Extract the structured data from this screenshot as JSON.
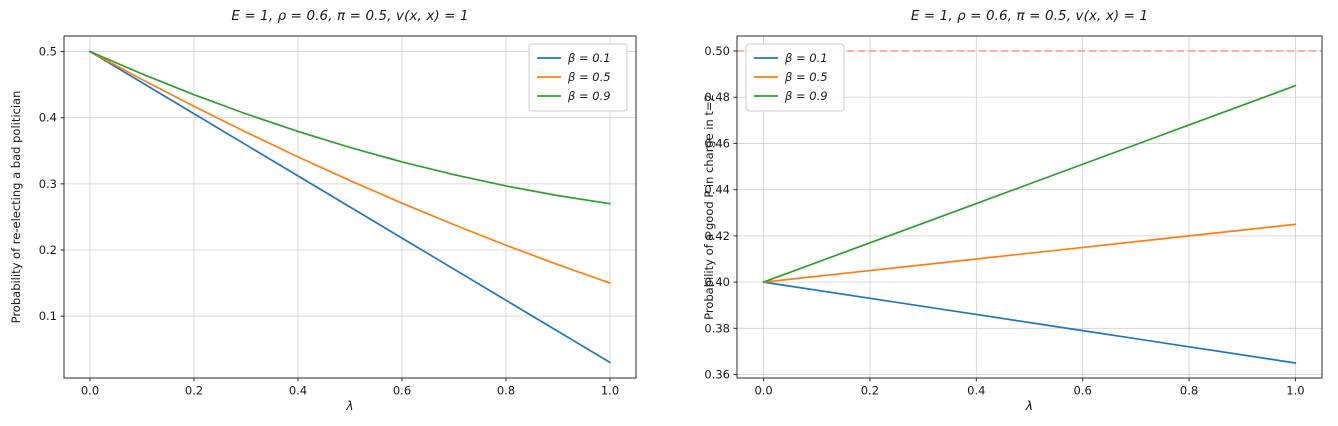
{
  "chart_data": [
    {
      "type": "line",
      "title": "E = 1, ρ = 0.6, π = 0.5, v(x, x) = 1",
      "xlabel": "λ",
      "ylabel": "Probability of re-electing a bad politician",
      "xlim": [
        -0.05,
        1.05
      ],
      "ylim": [
        0.0065,
        0.5235
      ],
      "grid": true,
      "legend_position": "upper right",
      "xticks": {
        "values": [
          0.0,
          0.2,
          0.4,
          0.6,
          0.8,
          1.0
        ],
        "labels": [
          "0.0",
          "0.2",
          "0.4",
          "0.6",
          "0.8",
          "1.0"
        ]
      },
      "yticks": {
        "values": [
          0.1,
          0.2,
          0.3,
          0.4,
          0.5
        ],
        "labels": [
          "0.1",
          "0.2",
          "0.3",
          "0.4",
          "0.5"
        ]
      },
      "x": [
        0.0,
        0.1,
        0.2,
        0.3,
        0.4,
        0.5,
        0.6,
        0.7,
        0.8,
        0.9,
        1.0
      ],
      "series": [
        {
          "name": "β = 0.1",
          "color": "#1f77b4",
          "values": [
            0.5,
            0.453,
            0.406,
            0.359,
            0.312,
            0.265,
            0.218,
            0.171,
            0.124,
            0.077,
            0.03
          ]
        },
        {
          "name": "β = 0.5",
          "color": "#ff7f0e",
          "values": [
            0.5,
            0.4578,
            0.4172,
            0.3782,
            0.3408,
            0.305,
            0.2708,
            0.2382,
            0.2072,
            0.1778,
            0.15
          ]
        },
        {
          "name": "β = 0.9",
          "color": "#2ca02c",
          "values": [
            0.5,
            0.4662,
            0.4348,
            0.4058,
            0.3792,
            0.355,
            0.3332,
            0.3138,
            0.2968,
            0.2822,
            0.27
          ]
        }
      ],
      "reference_lines": []
    },
    {
      "type": "line",
      "title": "E = 1, ρ = 0.6, π = 0.5, v(x, x) = 1",
      "xlabel": "λ",
      "ylabel": "Probability of a good P in charge in t=2",
      "xlim": [
        -0.05,
        1.05
      ],
      "ylim": [
        0.3585,
        0.5065
      ],
      "grid": true,
      "legend_position": "upper left",
      "xticks": {
        "values": [
          0.0,
          0.2,
          0.4,
          0.6,
          0.8,
          1.0
        ],
        "labels": [
          "0.0",
          "0.2",
          "0.4",
          "0.6",
          "0.8",
          "1.0"
        ]
      },
      "yticks": {
        "values": [
          0.36,
          0.38,
          0.4,
          0.42,
          0.44,
          0.46,
          0.48,
          0.5
        ],
        "labels": [
          "0.36",
          "0.38",
          "0.40",
          "0.42",
          "0.44",
          "0.46",
          "0.48",
          "0.50"
        ]
      },
      "x": [
        0.0,
        0.2,
        0.4,
        0.6,
        0.8,
        1.0
      ],
      "series": [
        {
          "name": "β = 0.1",
          "color": "#1f77b4",
          "values": [
            0.4,
            0.393,
            0.386,
            0.379,
            0.372,
            0.365
          ]
        },
        {
          "name": "β = 0.5",
          "color": "#ff7f0e",
          "values": [
            0.4,
            0.405,
            0.41,
            0.415,
            0.42,
            0.425
          ]
        },
        {
          "name": "β = 0.9",
          "color": "#2ca02c",
          "values": [
            0.4,
            0.417,
            0.434,
            0.451,
            0.468,
            0.485
          ]
        }
      ],
      "reference_lines": [
        {
          "y": 0.5,
          "color": "#ff9f9b",
          "style": "dashed"
        }
      ]
    }
  ]
}
